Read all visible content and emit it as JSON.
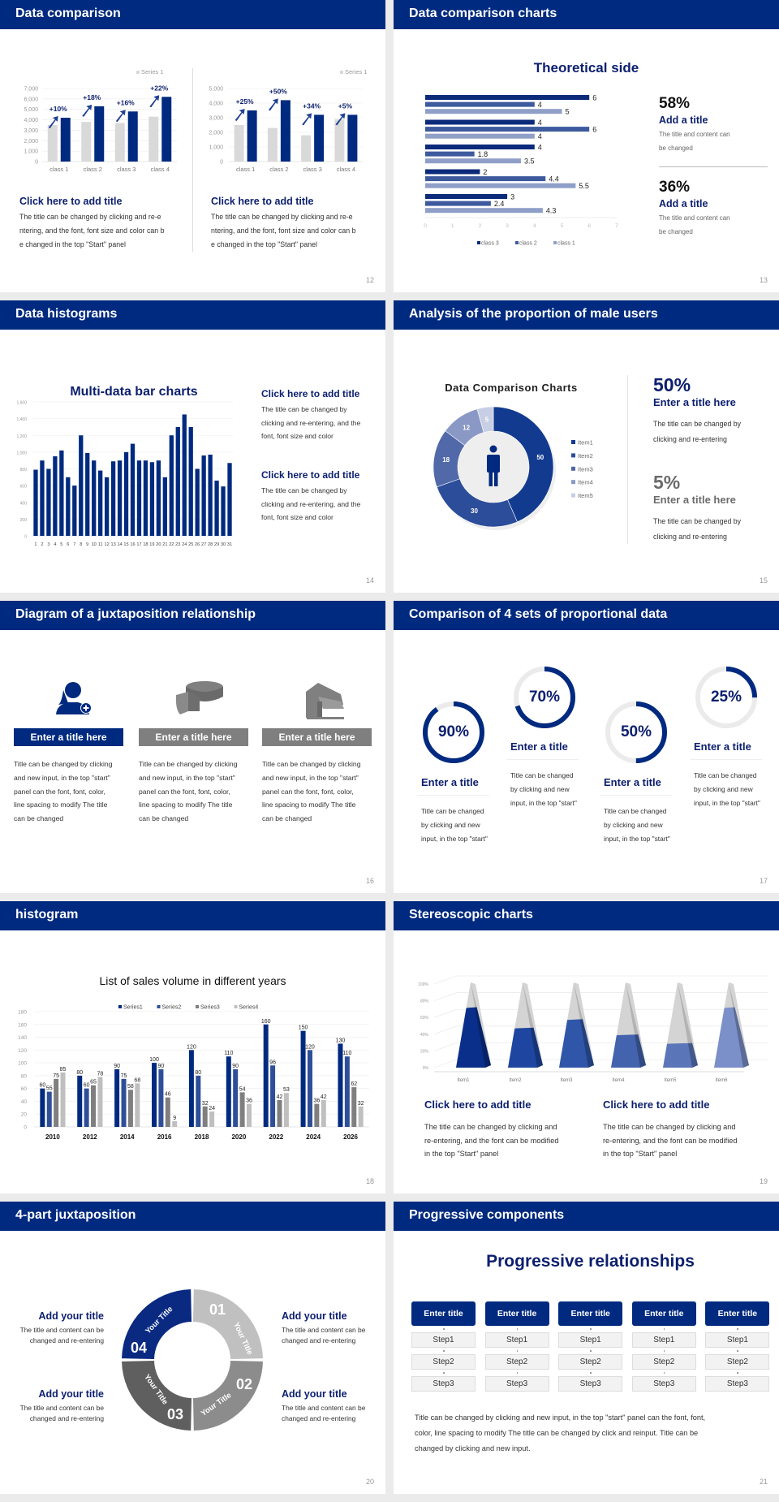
{
  "colors": {
    "navy": "#002a7f",
    "title": "#0c1f6e",
    "gray": "#808080"
  },
  "s12": {
    "title": "Data comparison",
    "page": "12",
    "left": {
      "heading": "Click here to add title",
      "body": [
        "The title can be changed by clicking and re-e",
        "ntering, and the font, font size and color can b",
        "e changed in the top \"Start\" panel"
      ]
    },
    "right": {
      "heading": "Click here to add title",
      "body": [
        "The title can be changed by clicking and re-e",
        "ntering, and the font, font size and color can b",
        "e changed in the top \"Start\" panel"
      ]
    }
  },
  "s13": {
    "title": "Data comparison charts",
    "page": "13",
    "chart_title": "Theoretical side",
    "stats": [
      {
        "pct": "58%",
        "heading": "Add a title",
        "body": [
          "The title and content can",
          "be changed"
        ]
      },
      {
        "pct": "36%",
        "heading": "Add a title",
        "body": [
          "The title and content can",
          "be changed"
        ]
      }
    ]
  },
  "s14": {
    "title": "Data histograms",
    "page": "14",
    "chart_title": "Multi-data bar charts",
    "blocks": [
      {
        "heading": "Click here to add title",
        "body": [
          "The title can be changed by",
          "clicking and re-entering, and the",
          "font, font size and color"
        ]
      },
      {
        "heading": "Click here to add title",
        "body": [
          "The title can be changed by",
          "clicking and re-entering, and the",
          "font, font size and color"
        ]
      }
    ]
  },
  "s15": {
    "title": "Analysis of the proportion of male users",
    "page": "15",
    "chart_title": "Data Comparison Charts",
    "stats": [
      {
        "pct": "50%",
        "heading": "Enter a title here",
        "body": [
          "The title can be changed by",
          "clicking and re-entering"
        ],
        "color": "#0c1f6e"
      },
      {
        "pct": "5%",
        "heading": "Enter a title here",
        "body": [
          "The title can be changed by",
          "clicking and re-entering"
        ],
        "color": "#6b6b6b"
      }
    ]
  },
  "s16": {
    "title": "Diagram of a juxtaposition relationship",
    "page": "16",
    "cols": [
      {
        "icon": "female-user-add-icon",
        "label": "Enter a title here",
        "color": "#002a7f",
        "body": [
          "Title can be changed by clicking",
          "and new input, in the top \"start\"",
          "panel can the font, font, color,",
          "line spacing to modify The title",
          "can be changed"
        ]
      },
      {
        "icon": "pie-chart-3d-icon",
        "label": "Enter a title here",
        "color": "#7f7f7f",
        "body": [
          "Title can be changed by clicking",
          "and new input, in the top \"start\"",
          "panel can the font, font, color,",
          "line spacing to modify The title",
          "can be changed"
        ]
      },
      {
        "icon": "store-icon",
        "label": "Enter a title here",
        "color": "#7f7f7f",
        "body": [
          "Title can be changed by clicking",
          "and new input, in the top \"start\"",
          "panel can the font, font, color,",
          "line spacing to modify The title",
          "can be changed"
        ]
      }
    ]
  },
  "s17": {
    "title": "Comparison of 4 sets of proportional data",
    "page": "17",
    "items": [
      {
        "value": 90,
        "label": "90%",
        "heading": "Enter a title",
        "body": [
          "Title can be changed",
          "by clicking and new",
          "input, in the top \"start\""
        ]
      },
      {
        "value": 70,
        "label": "70%",
        "heading": "Enter a title",
        "body": [
          "Title can be changed",
          "by clicking and new",
          "input, in the top \"start\""
        ]
      },
      {
        "value": 50,
        "label": "50%",
        "heading": "Enter a title",
        "body": [
          "Title can be changed",
          "by clicking and new",
          "input, in the top \"start\""
        ]
      },
      {
        "value": 25,
        "label": "25%",
        "heading": "Enter a title",
        "body": [
          "Title can be changed",
          "by clicking and new",
          "input, in the top \"start\""
        ]
      }
    ]
  },
  "s18": {
    "title": "histogram",
    "page": "18"
  },
  "s19": {
    "title": "Stereoscopic charts",
    "page": "19",
    "blocks": [
      {
        "heading": "Click here to add title",
        "body": [
          "The title can be changed by clicking and",
          "re-entering, and the font can be modified",
          "in the top \"Start\" panel"
        ]
      },
      {
        "heading": "Click here to add title",
        "body": [
          "The title can be changed by clicking and",
          "re-entering, and the font can be modified",
          "in the top \"Start\" panel"
        ]
      }
    ]
  },
  "s20": {
    "title": "4-part juxtaposition",
    "page": "20",
    "segments": [
      {
        "num": "01",
        "label": "Your Title",
        "color": "#c0c0c0"
      },
      {
        "num": "02",
        "label": "Your Title",
        "color": "#8c8c8c"
      },
      {
        "num": "03",
        "label": "Your Title",
        "color": "#5f5f5f"
      },
      {
        "num": "04",
        "label": "Your Title",
        "color": "#0a2a82"
      }
    ],
    "blocks": [
      {
        "heading": "Add your title",
        "body": [
          "The title and content can be",
          "changed and re-entering"
        ]
      },
      {
        "heading": "Add your title",
        "body": [
          "The title and content can be",
          "changed and re-entering"
        ]
      },
      {
        "heading": "Add your title",
        "body": [
          "The title and content can be",
          "changed and re-entering"
        ]
      },
      {
        "heading": "Add your title",
        "body": [
          "The title and content can be",
          "changed and re-entering"
        ]
      }
    ]
  },
  "s21": {
    "title": "Progressive components",
    "page": "21",
    "heading": "Progressive relationships",
    "columns": [
      {
        "title": "Enter title",
        "steps": [
          "Step1",
          "Step2",
          "Step3"
        ]
      },
      {
        "title": "Enter title",
        "steps": [
          "Step1",
          "Step2",
          "Step3"
        ]
      },
      {
        "title": "Enter title",
        "steps": [
          "Step1",
          "Step2",
          "Step3"
        ]
      },
      {
        "title": "Enter title",
        "steps": [
          "Step1",
          "Step2",
          "Step3"
        ]
      },
      {
        "title": "Enter title",
        "steps": [
          "Step1",
          "Step2",
          "Step3"
        ]
      }
    ],
    "paragraph": [
      "Title can be changed by clicking and new input, in the top \"start\" panel can the font, font,",
      "color, line spacing to modify The title can be changed by click and reinput. Title can be",
      "changed by clicking and new input."
    ]
  },
  "chart_data": [
    {
      "type": "bar",
      "categories": [
        "class 1",
        "class 2",
        "class 3",
        "class 4"
      ],
      "legend": "Series 1",
      "ylim": [
        0,
        7000
      ],
      "yticks": [
        "0",
        "1,000",
        "2,000",
        "3,000",
        "4,000",
        "5,000",
        "6,000",
        "7,000"
      ],
      "grid": true,
      "series": [
        {
          "values": [
            3500,
            3800,
            3700,
            4300
          ],
          "color": "#d9d9d9"
        },
        {
          "values": [
            4200,
            5300,
            4800,
            6200
          ],
          "color": "#002a7f"
        }
      ],
      "annotations": [
        "+10%",
        "+18%",
        "+16%",
        "+22%"
      ]
    },
    {
      "type": "bar",
      "categories": [
        "class 1",
        "class 2",
        "class 3",
        "class 4"
      ],
      "legend": "Series 1",
      "ylim": [
        0,
        5000
      ],
      "yticks": [
        "0",
        "1,000",
        "2,000",
        "3,000",
        "4,000",
        "5,000"
      ],
      "grid": true,
      "series": [
        {
          "values": [
            2500,
            2300,
            1800,
            2900
          ],
          "color": "#d9d9d9"
        },
        {
          "values": [
            3500,
            4200,
            3200,
            3200
          ],
          "color": "#002a7f"
        }
      ],
      "annotations": [
        "+25%",
        "+50%",
        "+34%",
        "+5%"
      ]
    },
    {
      "type": "bar",
      "orientation": "horizontal",
      "title": "Theoretical side",
      "xlim": [
        0,
        7
      ],
      "xticks": [
        "0",
        "1",
        "2",
        "3",
        "4",
        "5",
        "6",
        "7"
      ],
      "legend_position": "bottom",
      "series": [
        {
          "name": "class 3",
          "values": [
            6,
            4,
            4,
            2,
            3
          ],
          "color": "#0c2a7a"
        },
        {
          "name": "class 2",
          "values": [
            4,
            6,
            1.8,
            4.4,
            2.4
          ],
          "color": "#3d5a9e"
        },
        {
          "name": "class 1",
          "values": [
            5,
            4,
            3.5,
            5.5,
            4.3
          ],
          "color": "#8f9fc8"
        }
      ]
    },
    {
      "type": "bar",
      "title": "Multi-data bar charts",
      "ylim": [
        0,
        1600
      ],
      "grid": true,
      "yticks": [
        "0",
        "200",
        "400",
        "600",
        "800",
        "1,000",
        "1,200",
        "1,400",
        "1,600"
      ],
      "categories": [
        "1",
        "2",
        "3",
        "4",
        "5",
        "6",
        "7",
        "8",
        "9",
        "10",
        "11",
        "12",
        "13",
        "14",
        "15",
        "16",
        "17",
        "18",
        "19",
        "20",
        "21",
        "22",
        "23",
        "24",
        "25",
        "26",
        "27",
        "28",
        "29",
        "30",
        "31"
      ],
      "series": [
        {
          "values": [
            790,
            900,
            800,
            950,
            1020,
            700,
            600,
            1200,
            990,
            900,
            780,
            700,
            890,
            900,
            1000,
            1100,
            900,
            900,
            880,
            900,
            700,
            1200,
            1300,
            1450,
            1300,
            800,
            960,
            970,
            660,
            590,
            870
          ],
          "color": "#002a7f"
        }
      ]
    },
    {
      "type": "pie",
      "donut": true,
      "title": "Data Comparison Charts",
      "legend_position": "right",
      "labels": [
        "Item1",
        "Item2",
        "Item3",
        "Item4",
        "Item5"
      ],
      "values": [
        50,
        30,
        18,
        12,
        5
      ],
      "colors": [
        "#123b8f",
        "#2c4d9a",
        "#5169a8",
        "#8a98c6",
        "#c8cee3"
      ]
    },
    {
      "type": "bar",
      "title": "List of sales volume in different years",
      "ylim": [
        0,
        180
      ],
      "grid": true,
      "legend_position": "top",
      "yticks": [
        "0",
        "20",
        "40",
        "60",
        "80",
        "100",
        "120",
        "140",
        "160",
        "180"
      ],
      "categories": [
        "2010",
        "2012",
        "2014",
        "2016",
        "2018",
        "2020",
        "2022",
        "2024",
        "2026"
      ],
      "series": [
        {
          "name": "Series1",
          "values": [
            60,
            80,
            90,
            100,
            120,
            110,
            160,
            150,
            130
          ],
          "color": "#002a7f"
        },
        {
          "name": "Series2",
          "values": [
            55,
            60,
            75,
            90,
            80,
            90,
            96,
            120,
            110
          ],
          "color": "#2e4f98"
        },
        {
          "name": "Series3",
          "values": [
            75,
            65,
            58,
            46,
            32,
            54,
            42,
            36,
            62
          ],
          "color": "#7f7f7f"
        },
        {
          "name": "Series4",
          "values": [
            85,
            78,
            68,
            9,
            24,
            36,
            53,
            42,
            32
          ],
          "color": "#bfbfbf"
        }
      ]
    },
    {
      "type": "bar",
      "style": "3d-pyramid",
      "ylim": [
        0,
        100
      ],
      "yticks": [
        "0%",
        "20%",
        "40%",
        "60%",
        "80%",
        "100%"
      ],
      "categories": [
        "Item1",
        "Item2",
        "Item3",
        "Item4",
        "Item5",
        "Item6"
      ],
      "values": [
        70,
        46,
        56,
        38,
        28,
        70
      ],
      "colors": [
        "#0a2f8a",
        "#1e46a0",
        "#2f56a8",
        "#4363ae",
        "#5a76b8",
        "#7b90c8"
      ]
    }
  ]
}
